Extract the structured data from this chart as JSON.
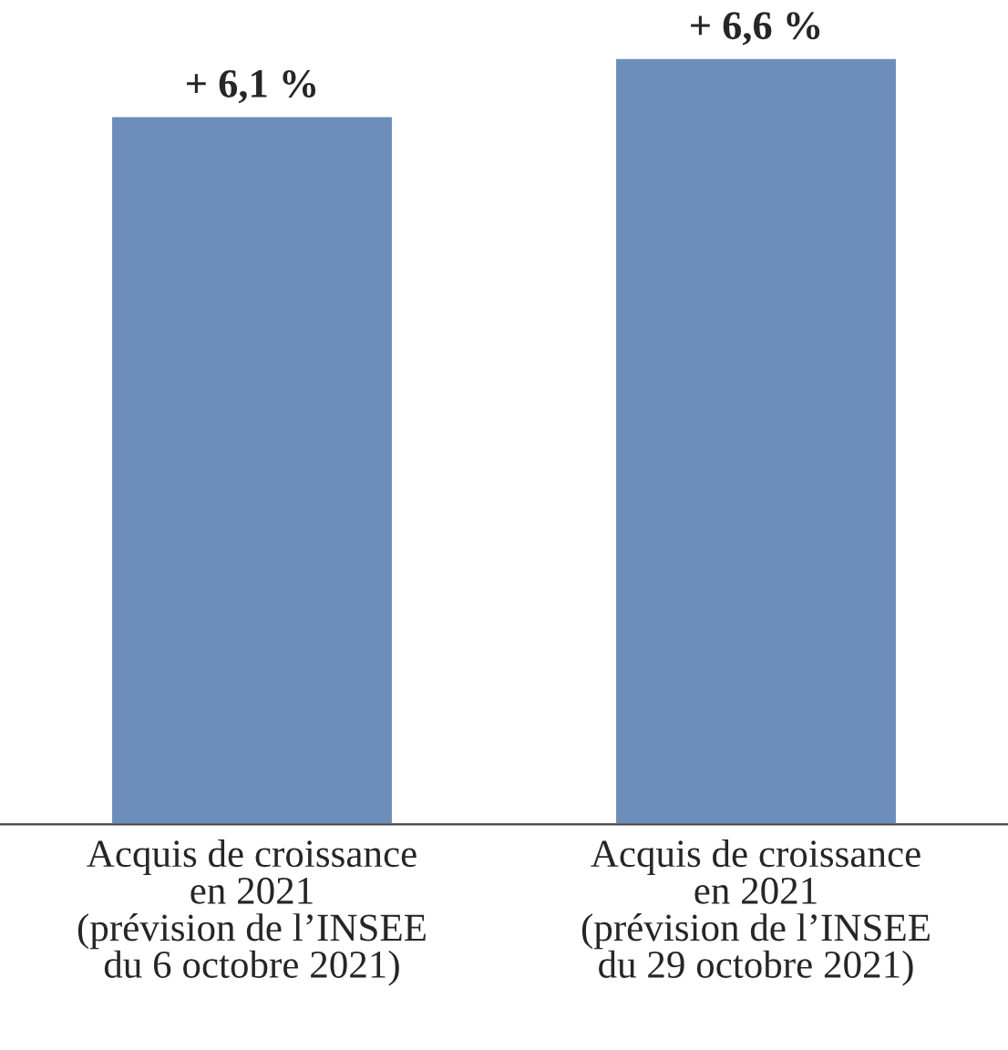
{
  "chart_data": {
    "type": "bar",
    "categories": [
      "Acquis de croissance\nen 2021\n(prévision de l’INSEE\ndu 6 octobre 2021)",
      "Acquis de croissance\nen 2021\n(prévision de l’INSEE\ndu 29 octobre 2021)"
    ],
    "values": [
      6.1,
      6.6
    ],
    "value_labels": [
      "+ 6,1 %",
      "+ 6,6 %"
    ],
    "color": "#6d8ebb",
    "grid": false,
    "legend": false
  }
}
